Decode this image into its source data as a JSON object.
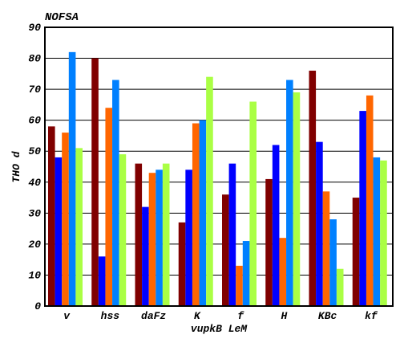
{
  "chart_data": {
    "type": "bar",
    "title": "NOFSA",
    "xlabel": "vupkB LeM",
    "ylabel": "THO d",
    "ylim": [
      0,
      90
    ],
    "yticks": [
      0,
      10,
      20,
      30,
      40,
      50,
      60,
      70,
      80,
      90
    ],
    "grid": "y-axis only, black lines",
    "legend": "none",
    "categories": [
      "v",
      "hss",
      "daFz",
      "K",
      "f",
      "H",
      "KBc",
      "kf"
    ],
    "series": [
      {
        "color": "#800000",
        "values": [
          58,
          80,
          46,
          27,
          36,
          41,
          76,
          35
        ]
      },
      {
        "color": "#0000ff",
        "values": [
          48,
          16,
          32,
          44,
          46,
          52,
          53,
          63
        ]
      },
      {
        "color": "#ff6600",
        "values": [
          56,
          64,
          43,
          59,
          13,
          22,
          37,
          68
        ]
      },
      {
        "color": "#0080ff",
        "values": [
          82,
          73,
          44,
          60,
          21,
          73,
          28,
          48
        ]
      },
      {
        "color": "#aaff44",
        "values": [
          51,
          49,
          46,
          74,
          66,
          69,
          12,
          47
        ]
      }
    ]
  }
}
